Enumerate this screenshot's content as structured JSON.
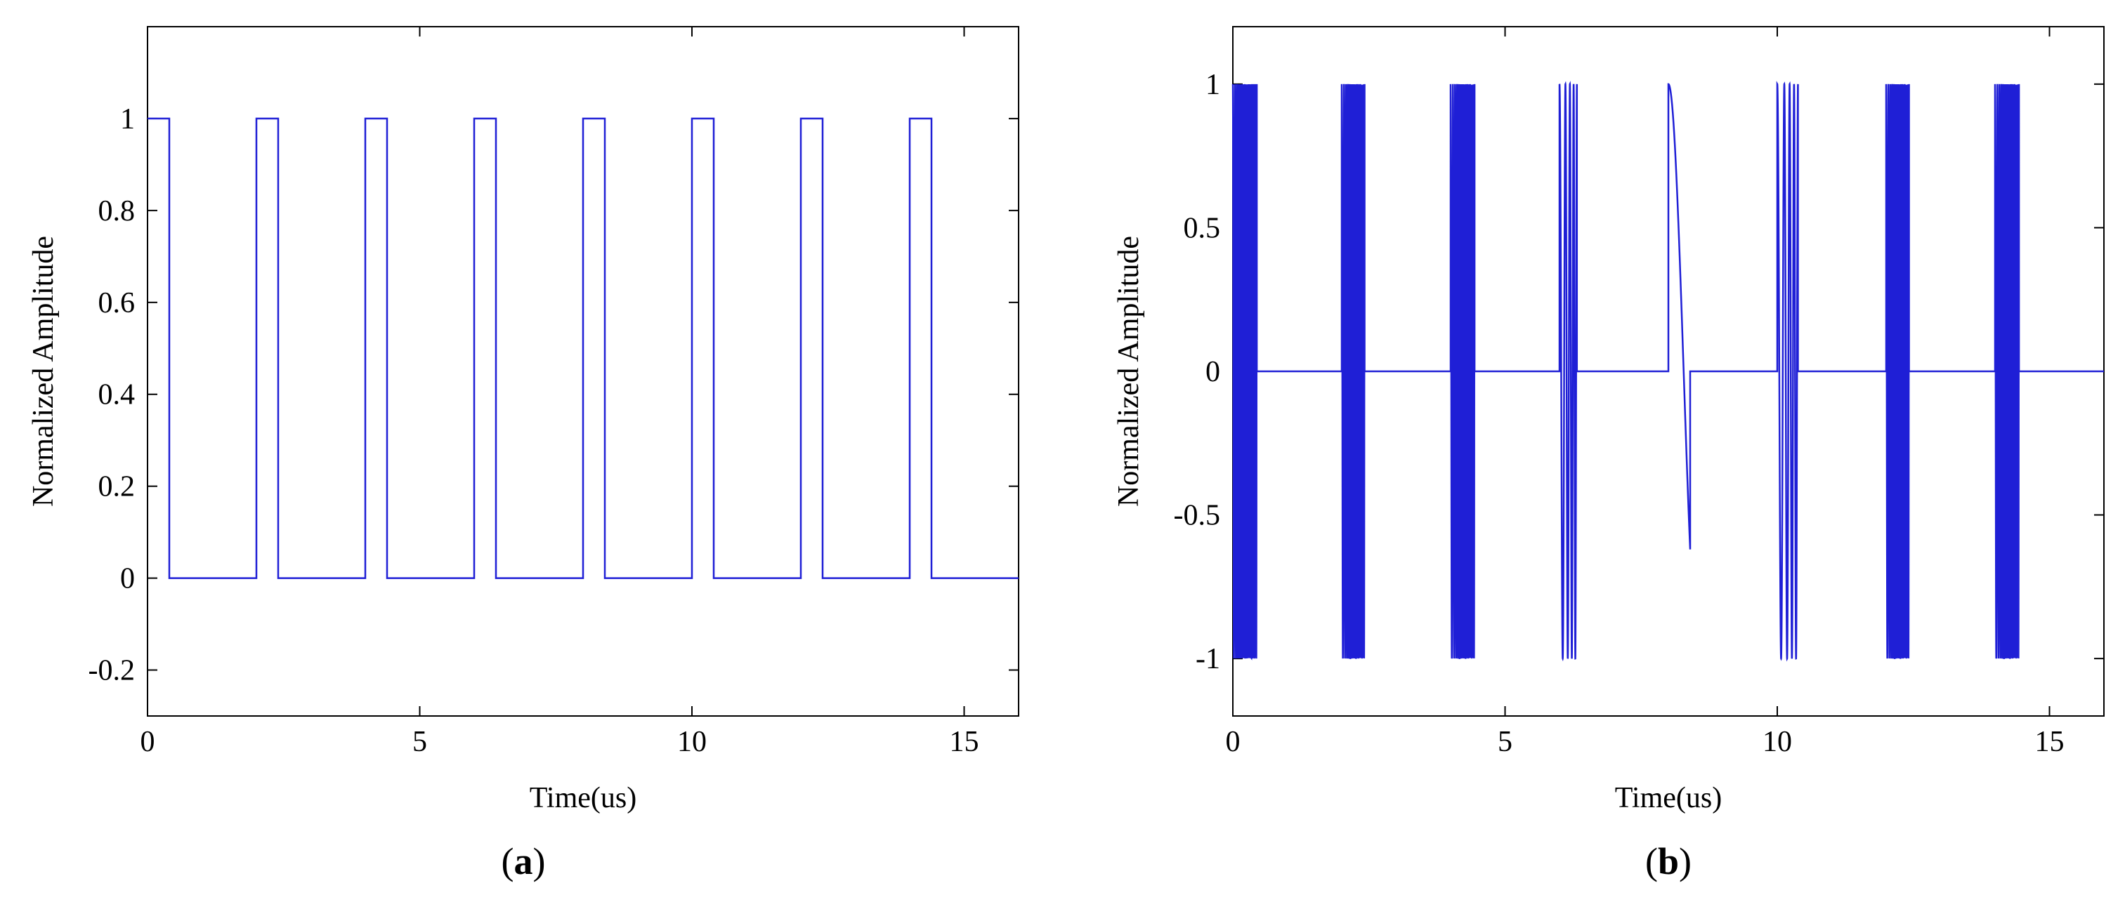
{
  "figure": {
    "panel_a_caption": {
      "open": "(",
      "letter": "a",
      "close": ")"
    },
    "panel_b_caption": {
      "open": "(",
      "letter": "b",
      "close": ")"
    }
  },
  "colors": {
    "signal": "#1f1fd6",
    "axes": "#000000",
    "background": "#ffffff"
  },
  "chart_data": [
    {
      "id": "a",
      "type": "line",
      "title": "",
      "xlabel": "Time(us)",
      "ylabel": "Normalized Amplitude",
      "xlim": [
        0,
        16
      ],
      "ylim": [
        -0.3,
        1.2
      ],
      "xticks": [
        0,
        5,
        10,
        15
      ],
      "xtick_labels": [
        "0",
        "5",
        "10",
        "15"
      ],
      "yticks": [
        -0.2,
        0,
        0.2,
        0.4,
        0.6,
        0.8,
        1
      ],
      "ytick_labels": [
        "-0.2",
        "0",
        "0.2",
        "0.4",
        "0.6",
        "0.8",
        "1"
      ],
      "grid": false,
      "legend": "none",
      "series": [
        {
          "style": "rectangular pulse train",
          "pulse_starts": [
            0,
            2,
            4,
            6,
            8,
            10,
            12,
            14
          ],
          "pulse_width": 0.4,
          "high": 1,
          "low": 0,
          "x_end": 16
        }
      ]
    },
    {
      "id": "b",
      "type": "line",
      "title": "",
      "xlabel": "Time(us)",
      "ylabel": "Normalized Amplitude",
      "xlim": [
        0,
        16
      ],
      "ylim": [
        -1.2,
        1.2
      ],
      "xticks": [
        0,
        5,
        10,
        15
      ],
      "xtick_labels": [
        "0",
        "5",
        "10",
        "15"
      ],
      "yticks": [
        -1,
        -0.5,
        0,
        0.5,
        1
      ],
      "ytick_labels": [
        "-1",
        "-0.5",
        "0",
        "0.5",
        "1"
      ],
      "grid": false,
      "legend": "none",
      "series": [
        {
          "style": "pulsed oscillation bursts (0 between bursts)",
          "bursts": [
            {
              "start": 0,
              "end": 0.44,
              "cycles": 18,
              "end_value": 0
            },
            {
              "start": 2,
              "end": 2.42,
              "cycles": 16,
              "end_value": 0
            },
            {
              "start": 4,
              "end": 4.44,
              "cycles": 16,
              "end_value": 0
            },
            {
              "start": 6,
              "end": 6.32,
              "cycles": 4,
              "end_value": 0
            },
            {
              "start": 8,
              "end": 8.4,
              "cycles": 0.6,
              "end_value": -0.62
            },
            {
              "start": 10,
              "end": 10.38,
              "cycles": 4,
              "end_value": 0
            },
            {
              "start": 12,
              "end": 12.42,
              "cycles": 16,
              "end_value": 0
            },
            {
              "start": 14,
              "end": 14.44,
              "cycles": 16,
              "end_value": 0.88
            }
          ],
          "baseline": 0,
          "x_end": 16
        }
      ]
    }
  ]
}
